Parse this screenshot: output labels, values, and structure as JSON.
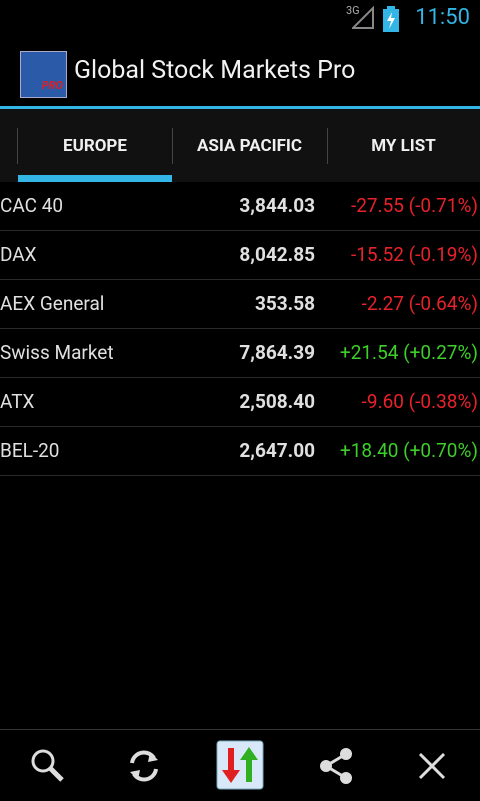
{
  "status_bar": {
    "network": "3G",
    "time": "11:50"
  },
  "app_bar": {
    "icon_text": "PRO",
    "title": "Global Stock Markets Pro"
  },
  "tabs": [
    {
      "label": "EUROPE",
      "selected": true
    },
    {
      "label": "ASIA PACIFIC",
      "selected": false
    },
    {
      "label": "MY LIST",
      "selected": false
    }
  ],
  "rows": [
    {
      "name": "CAC 40",
      "value": "3,844.03",
      "change": "-27.55 (-0.71%)",
      "color": "#e8222a"
    },
    {
      "name": "DAX",
      "value": "8,042.85",
      "change": "-15.52 (-0.19%)",
      "color": "#e8222a"
    },
    {
      "name": "AEX General",
      "value": "353.58",
      "change": "-2.27 (-0.64%)",
      "color": "#e8222a"
    },
    {
      "name": "Swiss Market",
      "value": "7,864.39",
      "change": "+21.54 (+0.27%)",
      "color": "#3ecf2a"
    },
    {
      "name": "ATX",
      "value": "2,508.40",
      "change": "-9.60 (-0.38%)",
      "color": "#e8222a"
    },
    {
      "name": "BEL-20",
      "value": "2,647.00",
      "change": "+18.40 (+0.70%)",
      "color": "#3ecf2a"
    }
  ]
}
